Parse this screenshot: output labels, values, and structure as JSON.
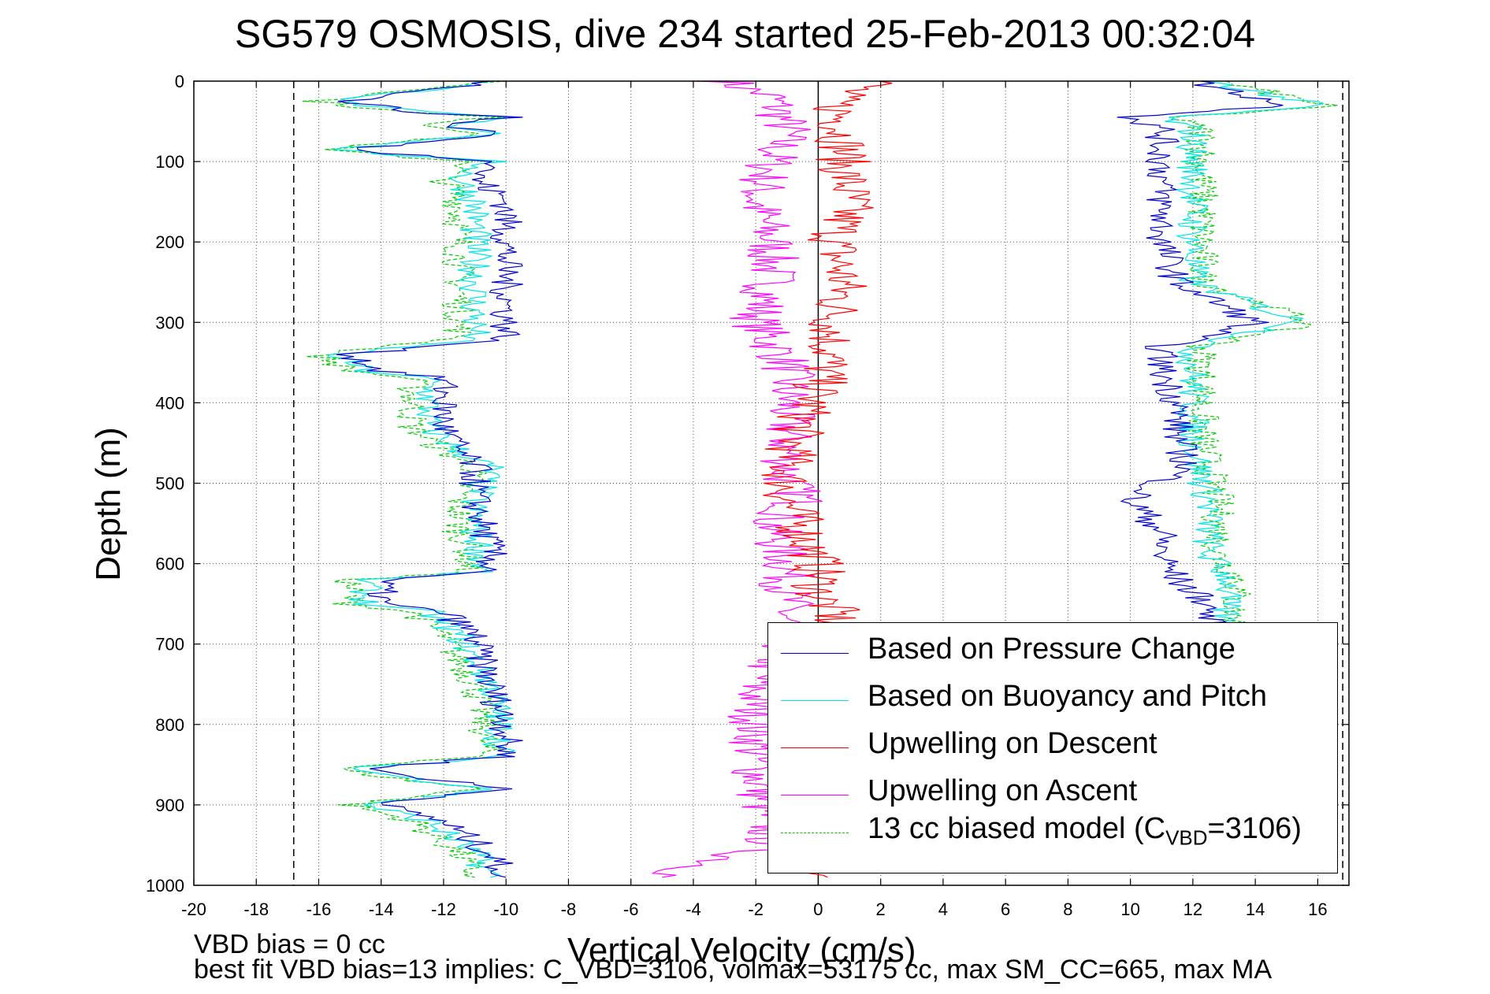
{
  "title": "SG579 OSMOSIS, dive 234 started 25-Feb-2013 00:32:04",
  "footer": {
    "note1": "VBD bias = 0 cc",
    "note2": "best fit VBD bias=13 implies: C_VBD=3106, volmax=53175 cc, max SM_CC=665, max MA"
  },
  "chart_data": {
    "type": "line",
    "title": "SG579 OSMOSIS, dive 234 started 25-Feb-2013 00:32:04",
    "xlabel": "Vertical Velocity (cm/s)",
    "ylabel": "Depth (m)",
    "xlim": [
      -20,
      17
    ],
    "ylim": [
      0,
      1000
    ],
    "y_reversed": true,
    "grid": true,
    "xticks": [
      -20,
      -18,
      -16,
      -14,
      -12,
      -10,
      -8,
      -6,
      -4,
      -2,
      0,
      2,
      4,
      6,
      8,
      10,
      12,
      14,
      16
    ],
    "yticks": [
      0,
      100,
      200,
      300,
      400,
      500,
      600,
      700,
      800,
      900,
      1000
    ],
    "legend_position": "lower-right",
    "reference_lines": [
      {
        "type": "vertical",
        "x": -16.8,
        "style": "dashed",
        "color": "#000000"
      },
      {
        "type": "vertical",
        "x": 16.8,
        "style": "dashed",
        "color": "#000000"
      },
      {
        "type": "vertical",
        "x": 0,
        "style": "solid",
        "color": "#000000"
      }
    ],
    "series": [
      {
        "name": "Based on Pressure Change",
        "color": "#0000cc",
        "style": "solid",
        "segments": [
          {
            "x": [
              -10.2,
              -15,
              -13,
              -10,
              -12,
              -10,
              -15,
              -12,
              -10,
              -11,
              -10,
              -10,
              -10,
              -10,
              -10,
              -10,
              -10,
              -15,
              -14,
              -12,
              -12,
              -12,
              -11.5,
              -11,
              -11,
              -10.7,
              -10.5,
              -10.5,
              -10.5,
              -14,
              -14,
              -12,
              -11,
              -10.8,
              -10.5,
              -10.2,
              -10,
              -10,
              -10,
              -14.5,
              -12,
              -10,
              -14,
              -12,
              -10.5,
              -10
            ],
            "y": [
              0,
              25,
              38,
              45,
              55,
              65,
              85,
              95,
              100,
              120,
              150,
              180,
              200,
              240,
              270,
              290,
              320,
              340,
              360,
              370,
              400,
              430,
              460,
              480,
              520,
              560,
              580,
              600,
              610,
              620,
              650,
              660,
              690,
              720,
              750,
              780,
              800,
              820,
              840,
              855,
              870,
              880,
              900,
              920,
              960,
              990
            ]
          },
          {
            "x": [
              12,
              15,
              12,
              10,
              11,
              11,
              11,
              11,
              11.5,
              14,
              11,
              11,
              11.5,
              11.5,
              11.8,
              10,
              11,
              11,
              11.5,
              12.5,
              12.5
            ],
            "y": [
              0,
              30,
              40,
              45,
              60,
              100,
              150,
              200,
              250,
              300,
              330,
              360,
              400,
              440,
              480,
              520,
              560,
              590,
              620,
              650,
              680
            ]
          }
        ]
      },
      {
        "name": "Based on Buoyancy and Pitch",
        "color": "#00e5e5",
        "style": "solid",
        "segments": [
          {
            "x": [
              -10.2,
              -15.5,
              -13,
              -10,
              -12,
              -10,
              -15.5,
              -12.5,
              -10.5,
              -11.5,
              -11,
              -11,
              -11,
              -11,
              -11,
              -11,
              -11,
              -15.5,
              -14.5,
              -12.5,
              -12.5,
              -12.5,
              -11.5,
              -10.5,
              -11,
              -11,
              -10.8,
              -10.8,
              -10.8,
              -14.5,
              -14.5,
              -12.5,
              -11.5,
              -11,
              -10.5,
              -10.3,
              -10.2,
              -10.2,
              -10.2,
              -15,
              -12.5,
              -10.3,
              -14.5,
              -12.5,
              -11,
              -10.5
            ],
            "y": [
              0,
              25,
              38,
              45,
              55,
              65,
              85,
              95,
              100,
              120,
              150,
              180,
              200,
              240,
              270,
              290,
              320,
              340,
              360,
              370,
              400,
              430,
              460,
              480,
              520,
              560,
              580,
              600,
              610,
              620,
              650,
              660,
              690,
              720,
              750,
              780,
              800,
              820,
              840,
              855,
              870,
              880,
              900,
              920,
              960,
              990
            ]
          },
          {
            "x": [
              12.5,
              16,
              13,
              11,
              12,
              12,
              12,
              12,
              12,
              15.5,
              12,
              12,
              12,
              12,
              12.2,
              12.5,
              12.5,
              12.5,
              13.2,
              13,
              13
            ],
            "y": [
              0,
              30,
              40,
              45,
              60,
              100,
              150,
              200,
              250,
              300,
              330,
              360,
              400,
              440,
              480,
              520,
              560,
              590,
              620,
              650,
              680
            ]
          }
        ]
      },
      {
        "name": "Upwelling on Descent",
        "color": "#ff0000",
        "style": "solid",
        "segments": [
          {
            "x": [
              2,
              0.5,
              0.8,
              0.8,
              1,
              0.5,
              0.8,
              0.5,
              0.3,
              0,
              -0.5,
              -0.8,
              -1,
              -1,
              -0.5,
              0,
              0,
              0.5,
              0.5,
              0.3
            ],
            "y": [
              0,
              20,
              60,
              100,
              150,
              200,
              250,
              300,
              350,
              380,
              420,
              450,
              480,
              520,
              560,
              600,
              640,
              660,
              670,
              990
            ]
          }
        ]
      },
      {
        "name": "Upwelling on Ascent",
        "color": "#ff00ff",
        "style": "solid",
        "segments": [
          {
            "x": [
              -3,
              -1.5,
              -1,
              -1.5,
              -2,
              -1.5,
              -1.5,
              -2,
              -1,
              -1,
              -1,
              -1,
              -0.5,
              -1.5,
              -1,
              -1,
              -1,
              -2,
              -2,
              -2,
              -1.5,
              -5
            ],
            "y": [
              0,
              20,
              60,
              100,
              150,
              200,
              250,
              300,
              350,
              400,
              450,
              500,
              520,
              550,
              600,
              650,
              700,
              750,
              800,
              850,
              950,
              990
            ]
          }
        ]
      },
      {
        "name": "13 cc biased model",
        "color": "#00cc00",
        "style": "dashed",
        "segments": [
          {
            "x": [
              -10.2,
              -16,
              -13.5,
              -10.5,
              -12.5,
              -10.5,
              -16,
              -13,
              -11,
              -12,
              -11.5,
              -11.5,
              -11.5,
              -11.5,
              -11.5,
              -11.5,
              -11.5,
              -16,
              -15,
              -13,
              -13,
              -13,
              -12,
              -11,
              -11.5,
              -11.5,
              -11.2,
              -11.2,
              -11.2,
              -15,
              -15,
              -13,
              -12,
              -11.5,
              -11,
              -10.8,
              -10.7,
              -10.7,
              -10.7,
              -15.5,
              -13,
              -10.8,
              -15,
              -13,
              -11.5,
              -11
            ],
            "y": [
              0,
              25,
              38,
              45,
              55,
              65,
              85,
              95,
              100,
              120,
              150,
              180,
              200,
              240,
              270,
              290,
              320,
              340,
              360,
              370,
              400,
              430,
              460,
              480,
              520,
              560,
              580,
              600,
              610,
              620,
              650,
              660,
              690,
              720,
              750,
              780,
              800,
              820,
              840,
              855,
              870,
              880,
              900,
              920,
              960,
              990
            ]
          },
          {
            "x": [
              12.8,
              16.3,
              13.3,
              11.3,
              12.3,
              12.3,
              12.3,
              12.3,
              12.3,
              15.8,
              12.3,
              12.3,
              12.3,
              12.3,
              12.5,
              12.8,
              12.8,
              12.8,
              13.5,
              13.3,
              13.3
            ],
            "y": [
              0,
              30,
              40,
              45,
              60,
              100,
              150,
              200,
              250,
              300,
              330,
              360,
              400,
              440,
              480,
              520,
              560,
              590,
              620,
              650,
              680
            ]
          }
        ]
      }
    ],
    "legend": [
      {
        "label": "Based on Pressure Change",
        "color": "#0000cc",
        "style": "solid"
      },
      {
        "label": "Based on Buoyancy and Pitch",
        "color": "#00e5e5",
        "style": "solid"
      },
      {
        "label": "Upwelling on Descent",
        "color": "#ff0000",
        "style": "solid"
      },
      {
        "label": "Upwelling on Ascent",
        "color": "#ff00ff",
        "style": "solid"
      },
      {
        "label_prefix": "13 cc biased model (C",
        "label_sub": "VBD",
        "label_suffix": "=3106)",
        "color": "#00cc00",
        "style": "dashed"
      }
    ]
  }
}
